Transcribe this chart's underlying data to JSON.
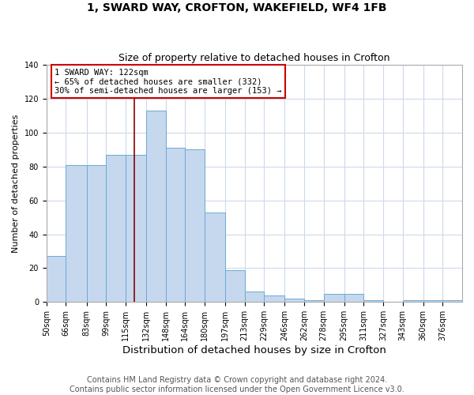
{
  "title": "1, SWARD WAY, CROFTON, WAKEFIELD, WF4 1FB",
  "subtitle": "Size of property relative to detached houses in Crofton",
  "xlabel": "Distribution of detached houses by size in Crofton",
  "ylabel": "Number of detached properties",
  "bar_labels": [
    "50sqm",
    "66sqm",
    "83sqm",
    "99sqm",
    "115sqm",
    "132sqm",
    "148sqm",
    "164sqm",
    "180sqm",
    "197sqm",
    "213sqm",
    "229sqm",
    "246sqm",
    "262sqm",
    "278sqm",
    "295sqm",
    "311sqm",
    "327sqm",
    "343sqm",
    "360sqm",
    "376sqm"
  ],
  "bar_heights": [
    27,
    81,
    81,
    87,
    87,
    113,
    91,
    90,
    53,
    19,
    6,
    4,
    2,
    1,
    5,
    5,
    1,
    0,
    1,
    1,
    1
  ],
  "bar_color": "#c5d8ee",
  "bar_edge_color": "#6aaad4",
  "annotation_text": "1 SWARD WAY: 122sqm\n← 65% of detached houses are smaller (332)\n30% of semi-detached houses are larger (153) →",
  "vline_x": 122,
  "vline_color": "#8b0000",
  "ylim": [
    0,
    140
  ],
  "yticks": [
    0,
    20,
    40,
    60,
    80,
    100,
    120,
    140
  ],
  "bin_edges": [
    50,
    66,
    83,
    99,
    115,
    132,
    148,
    164,
    180,
    197,
    213,
    229,
    246,
    262,
    278,
    295,
    311,
    327,
    343,
    360,
    376,
    392
  ],
  "footer": "Contains HM Land Registry data © Crown copyright and database right 2024.\nContains public sector information licensed under the Open Government Licence v3.0.",
  "background_color": "#ffffff",
  "grid_color": "#ccdaeb",
  "annotation_box_color": "#ffffff",
  "annotation_box_edge": "#cc0000",
  "title_fontsize": 10,
  "subtitle_fontsize": 9,
  "xlabel_fontsize": 9.5,
  "ylabel_fontsize": 8,
  "tick_fontsize": 7,
  "footer_fontsize": 7
}
